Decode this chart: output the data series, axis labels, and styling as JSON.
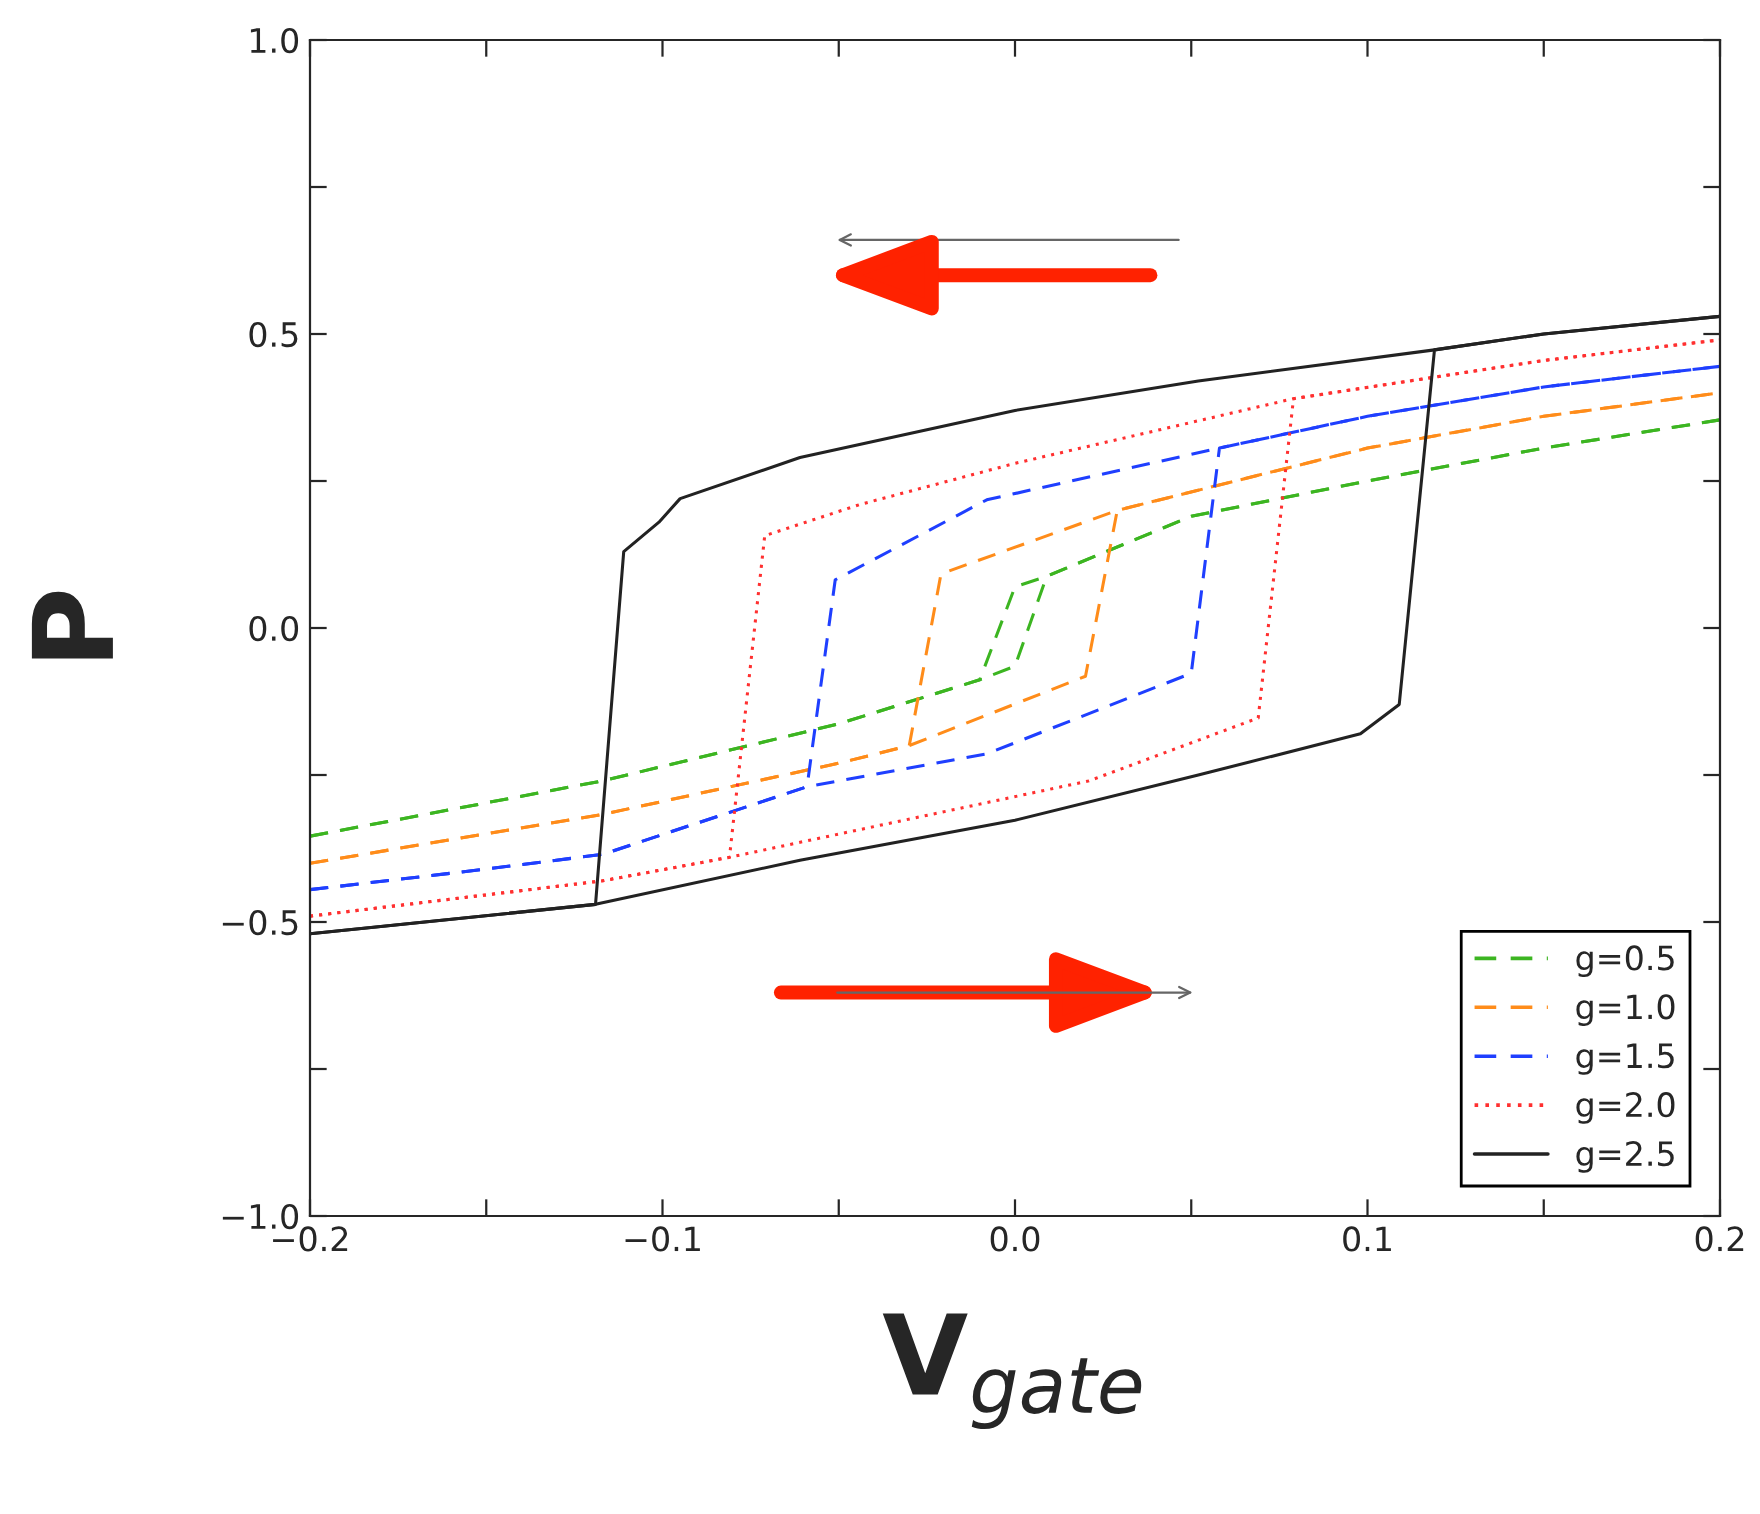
{
  "chart_data": {
    "type": "line",
    "xlabel": "V$_{gate}$",
    "ylabel": "P",
    "xlim": [
      -0.2,
      0.2
    ],
    "ylim": [
      -1.0,
      1.0
    ],
    "xticks": [
      {
        "value": -0.2,
        "label": "−0.2"
      },
      {
        "value": -0.15,
        "label": null
      },
      {
        "value": -0.1,
        "label": "−0.1"
      },
      {
        "value": -0.05,
        "label": null
      },
      {
        "value": 0.0,
        "label": "0.0"
      },
      {
        "value": 0.05,
        "label": null
      },
      {
        "value": 0.1,
        "label": "0.1"
      },
      {
        "value": 0.15,
        "label": null
      },
      {
        "value": 0.2,
        "label": "0.2"
      }
    ],
    "yticks": [
      {
        "value": -1.0,
        "label": "−1.0"
      },
      {
        "value": -0.75,
        "label": null
      },
      {
        "value": -0.5,
        "label": "−0.5"
      },
      {
        "value": -0.25,
        "label": null
      },
      {
        "value": 0.0,
        "label": "0.0"
      },
      {
        "value": 0.25,
        "label": null
      },
      {
        "value": 0.5,
        "label": "0.5"
      },
      {
        "value": 0.75,
        "label": null
      },
      {
        "value": 1.0,
        "label": "1.0"
      }
    ],
    "grid": false,
    "legend": "bottom right",
    "marker": "none",
    "series": [
      {
        "name": "g=0.5",
        "color": "#3cb521",
        "line_style": "dashed",
        "x": [
          -0.2,
          -0.117,
          -0.05,
          -0.01,
          0.0,
          0.009,
          0.05,
          0.1,
          0.15,
          0.2
        ],
        "values": [
          -0.354,
          -0.26,
          -0.163,
          -0.088,
          -0.065,
          0.088,
          0.19,
          0.25,
          0.306,
          0.354
        ]
      },
      {
        "color": "#3cb521",
        "line_style": "dashed",
        "x": [
          -0.2,
          -0.117,
          -0.05,
          -0.01,
          0.0,
          0.009,
          0.05,
          0.1,
          0.15,
          0.2
        ],
        "values": [
          -0.354,
          -0.26,
          -0.163,
          -0.088,
          0.07,
          0.088,
          0.19,
          0.25,
          0.306,
          0.354
        ]
      },
      {
        "name": "g=1.0",
        "color": "#ff8c1a",
        "line_style": "dashed",
        "x": [
          -0.2,
          -0.117,
          -0.05,
          -0.03,
          0.02,
          0.029,
          0.1,
          0.15,
          0.2
        ],
        "values": [
          -0.4,
          -0.317,
          -0.23,
          -0.2,
          -0.082,
          0.2,
          0.306,
          0.36,
          0.4
        ]
      },
      {
        "color": "#ff8c1a",
        "line_style": "dashed",
        "x": [
          -0.2,
          -0.117,
          -0.05,
          -0.03,
          -0.021,
          0.029,
          0.1,
          0.15,
          0.2
        ],
        "values": [
          -0.4,
          -0.317,
          -0.23,
          -0.2,
          0.092,
          0.2,
          0.306,
          0.36,
          0.4
        ]
      },
      {
        "name": "g=1.5",
        "color": "#1f3fff",
        "line_style": "dashed",
        "x": [
          -0.2,
          -0.15,
          -0.117,
          -0.059,
          -0.008,
          0.05,
          0.058,
          0.1,
          0.15,
          0.2
        ],
        "values": [
          -0.445,
          -0.41,
          -0.385,
          -0.27,
          -0.214,
          -0.077,
          0.306,
          0.36,
          0.41,
          0.445
        ]
      },
      {
        "color": "#1f3fff",
        "line_style": "dashed",
        "x": [
          -0.2,
          -0.15,
          -0.117,
          -0.059,
          -0.051,
          -0.008,
          0.058,
          0.1,
          0.15,
          0.2
        ],
        "values": [
          -0.445,
          -0.41,
          -0.385,
          -0.27,
          0.082,
          0.218,
          0.306,
          0.36,
          0.41,
          0.445
        ]
      },
      {
        "name": "g=2.0",
        "color": "#ff3030",
        "line_style": "dotted",
        "x": [
          -0.2,
          -0.117,
          -0.081,
          0.021,
          0.069,
          0.079,
          0.15,
          0.2
        ],
        "values": [
          -0.49,
          -0.43,
          -0.39,
          -0.26,
          -0.153,
          0.39,
          0.455,
          0.49
        ]
      },
      {
        "color": "#ff3030",
        "line_style": "dotted",
        "x": [
          -0.2,
          -0.117,
          -0.081,
          -0.071,
          -0.044,
          0.0,
          0.079,
          0.15,
          0.2
        ],
        "values": [
          -0.49,
          -0.43,
          -0.39,
          0.157,
          0.21,
          0.28,
          0.39,
          0.455,
          0.49
        ]
      },
      {
        "name": "g=2.5",
        "color": "#222222",
        "line_style": "solid",
        "x": [
          -0.2,
          -0.119,
          -0.061,
          0.0,
          0.052,
          0.098,
          0.109,
          0.119,
          0.15,
          0.2
        ],
        "values": [
          -0.52,
          -0.47,
          -0.395,
          -0.327,
          -0.25,
          -0.18,
          -0.13,
          0.473,
          0.5,
          0.53
        ]
      },
      {
        "color": "#222222",
        "line_style": "solid",
        "x": [
          -0.2,
          -0.119,
          -0.111,
          -0.101,
          -0.095,
          -0.061,
          0.0,
          0.052,
          0.119,
          0.15,
          0.2
        ],
        "values": [
          -0.52,
          -0.47,
          0.13,
          0.18,
          0.22,
          0.29,
          0.37,
          0.42,
          0.473,
          0.5,
          0.53
        ]
      }
    ]
  }
}
